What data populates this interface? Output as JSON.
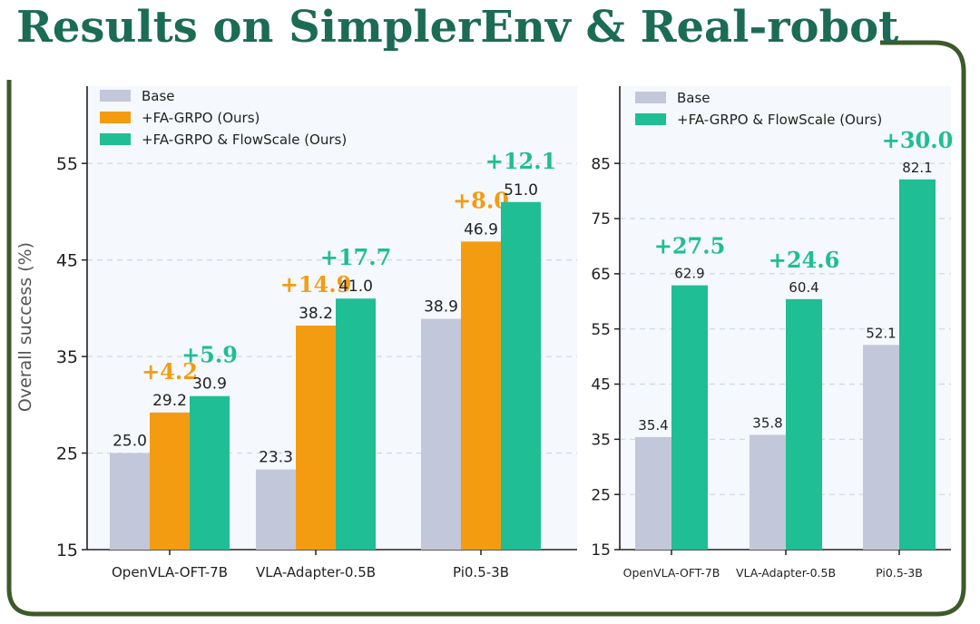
{
  "title": "Results on SimplerEnv & Real-robot",
  "colors": {
    "title": "#1b6b55",
    "frame": "#3d5a2a",
    "base": "#c3c7da",
    "fa_grpo": "#f39c12",
    "flowscale": "#1fbe95",
    "plot_bg": "#f5f8fc"
  },
  "chart_data": [
    {
      "type": "bar",
      "name": "SimplerEnv",
      "ylabel": "Overall success (%)",
      "ylim": [
        15,
        63
      ],
      "yticks": [
        "15",
        "25",
        "35",
        "45",
        "55"
      ],
      "grid": true,
      "legend": "top-left",
      "categories": [
        "OpenVLA-OFT-7B",
        "VLA-Adapter-0.5B",
        "Pi0.5-3B"
      ],
      "series": [
        {
          "name": "Base",
          "color": "base",
          "values": [
            25.0,
            23.3,
            38.9
          ],
          "labels": [
            "25.0",
            "23.3",
            "38.9"
          ]
        },
        {
          "name": "+FA-GRPO (Ours)",
          "color": "fa_grpo",
          "values": [
            29.2,
            38.2,
            46.9
          ],
          "labels": [
            "29.2",
            "38.2",
            "46.9"
          ],
          "gains": [
            "+4.2",
            "+14.9",
            "+8.0"
          ]
        },
        {
          "name": "+FA-GRPO & FlowScale (Ours)",
          "color": "flowscale",
          "values": [
            30.9,
            41.0,
            51.0
          ],
          "labels": [
            "30.9",
            "41.0",
            "51.0"
          ],
          "gains": [
            "+5.9",
            "+17.7",
            "+12.1"
          ]
        }
      ]
    },
    {
      "type": "bar",
      "name": "Real-robot",
      "ylabel": "",
      "ylim": [
        15,
        99
      ],
      "yticks": [
        "15",
        "25",
        "35",
        "45",
        "55",
        "65",
        "75",
        "85"
      ],
      "grid": true,
      "legend": "top-left",
      "categories": [
        "OpenVLA-OFT-7B",
        "VLA-Adapter-0.5B",
        "Pi0.5-3B"
      ],
      "series": [
        {
          "name": "Base",
          "color": "base",
          "values": [
            35.4,
            35.8,
            52.1
          ],
          "labels": [
            "35.4",
            "35.8",
            "52.1"
          ]
        },
        {
          "name": "+FA-GRPO & FlowScale (Ours)",
          "color": "flowscale",
          "values": [
            62.9,
            60.4,
            82.1
          ],
          "labels": [
            "62.9",
            "60.4",
            "82.1"
          ],
          "gains": [
            "+27.5",
            "+24.6",
            "+30.0"
          ]
        }
      ]
    }
  ]
}
